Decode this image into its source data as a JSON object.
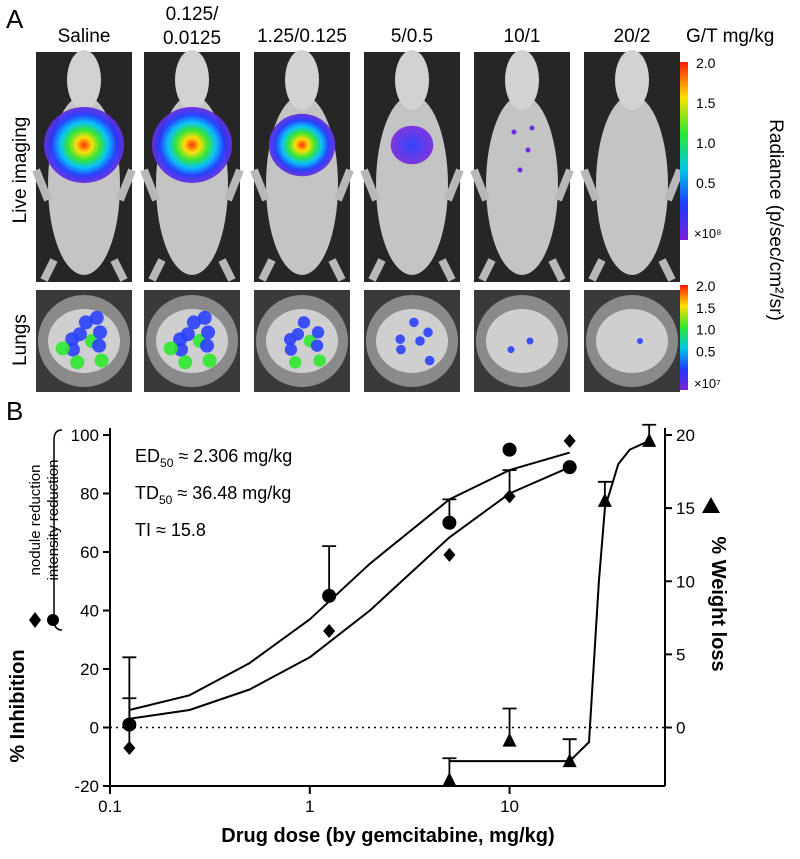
{
  "panel_a": {
    "letter": "A",
    "column_labels": [
      [
        "Saline"
      ],
      [
        "0.125/",
        "0.0125"
      ],
      [
        "1.25/0.125"
      ],
      [
        "5/0.5"
      ],
      [
        "10/1"
      ],
      [
        "20/2"
      ]
    ],
    "unit_label": "G/T mg/kg",
    "row_labels": [
      "Live imaging",
      "Lungs"
    ],
    "colorbar_label": "Radiance (p/sec/cm²/sr)",
    "colorbars": [
      {
        "ticks": [
          "2.0",
          "1.5",
          "1.0",
          "0.5"
        ],
        "multiplier": "×10⁸"
      },
      {
        "ticks": [
          "2.0",
          "1.5",
          "1.0",
          "0.5"
        ],
        "multiplier": "×10⁷"
      }
    ]
  },
  "chart_data": {
    "type": "scatter",
    "panel_letter": "B",
    "xlabel": "Drug dose (by gemcitabine, mg/kg)",
    "ylabel": "% Inhibition",
    "y2label": "% Weight loss",
    "xscale": "log",
    "xlim": [
      0.1,
      60
    ],
    "xticks": [
      0.1,
      1,
      10
    ],
    "ylim": [
      -20,
      100
    ],
    "yticks": [
      -20,
      0,
      20,
      40,
      60,
      80,
      100
    ],
    "y2lim": [
      -4,
      20
    ],
    "y2ticks": [
      0,
      5,
      10,
      15,
      20
    ],
    "zero_line": true,
    "annotations": [
      {
        "text": "ED",
        "sub": "50",
        "rest": " ≈ 2.306 mg/kg"
      },
      {
        "text": "TD",
        "sub": "50",
        "rest": " ≈ 36.48 mg/kg"
      },
      {
        "text": "TI ≈ 15.8"
      }
    ],
    "series": [
      {
        "name": "nodule reduction",
        "marker": "diamond",
        "color": "#000000",
        "x": [
          0.125,
          1.25,
          5,
          10,
          20
        ],
        "values": [
          -7,
          33,
          59,
          79,
          98
        ],
        "errors": [
          17,
          null,
          null,
          9,
          null
        ]
      },
      {
        "name": "intensity reduction",
        "marker": "circle",
        "color": "#000000",
        "x": [
          0.125,
          1.25,
          5,
          10,
          20
        ],
        "values": [
          1,
          45,
          70,
          95,
          89
        ],
        "errors": [
          23,
          17,
          8,
          null,
          null
        ]
      },
      {
        "marker": "triangle",
        "color": "#000000",
        "axis": "y2",
        "x": [
          5,
          10,
          20,
          30,
          50
        ],
        "values": [
          -3.6,
          -0.9,
          -2.3,
          15.5,
          19.6
        ],
        "errors": [
          1.5,
          2.2,
          1.5,
          1.3,
          1.1
        ]
      }
    ],
    "fits": [
      {
        "type": "line",
        "color": "#000000",
        "x": [
          0.125,
          0.25,
          0.5,
          1,
          2,
          5,
          10,
          20
        ],
        "values": [
          6,
          11,
          22,
          37,
          56,
          78,
          88,
          94
        ]
      },
      {
        "type": "line",
        "color": "#000000",
        "x": [
          0.125,
          0.25,
          0.5,
          1,
          2,
          5,
          10,
          20
        ],
        "values": [
          3,
          6,
          13,
          24,
          40,
          65,
          80,
          89
        ]
      },
      {
        "type": "line",
        "color": "#000000",
        "axis": "y2",
        "x": [
          5,
          10,
          20,
          25,
          28,
          30,
          35,
          40,
          50
        ],
        "values": [
          -2.3,
          -2.3,
          -2.3,
          -1,
          10,
          15,
          18,
          19,
          19.6
        ]
      }
    ]
  }
}
